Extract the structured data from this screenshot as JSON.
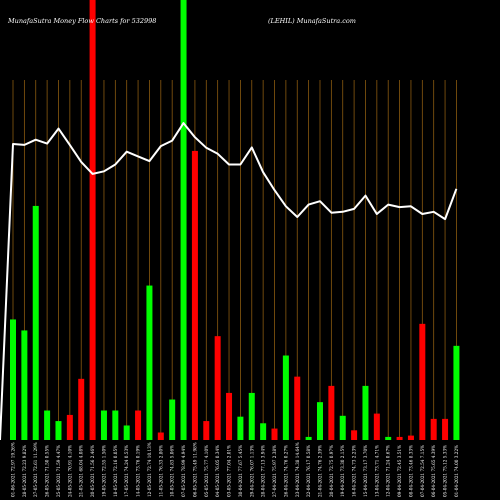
{
  "chart_data": {
    "type": "bar",
    "header_left": "MunafaSutra  Money Flow  Charts for 532998",
    "header_right": "(LEHIL) MunafaSutra.com",
    "ylim": [
      0,
      100
    ],
    "colors": {
      "up": "#00ff00",
      "down": "#ff0000",
      "line": "#ffffff",
      "grid": "#8a5a10",
      "background": "#000000"
    },
    "bars": [
      {
        "label": "01-06-2021 72.97 19.26%",
        "value": 27.4,
        "dir": "up"
      },
      {
        "label": "28-05-2021 72.23 9.82%",
        "value": 24.9,
        "dir": "up"
      },
      {
        "label": "27-05-2021 72.61 11.29%",
        "value": 53.2,
        "dir": "up"
      },
      {
        "label": "26-05-2021 71.50 0.55%",
        "value": 6.7,
        "dir": "up"
      },
      {
        "label": "25-05-2021 71.59 4.47%",
        "value": 4.3,
        "dir": "up"
      },
      {
        "label": "24-05-2021 70.91 4.10%",
        "value": 5.7,
        "dir": "down"
      },
      {
        "label": "21-05-2021 68.04 4.08%",
        "value": 13.9,
        "dir": "down"
      },
      {
        "label": "20-05-2021 71.56 2.46%",
        "value": 100,
        "dir": "down"
      },
      {
        "label": "19-05-2021 72.55 1.50%",
        "value": 6.7,
        "dir": "up"
      },
      {
        "label": "18-05-2021 72.16 0.05%",
        "value": 6.7,
        "dir": "up"
      },
      {
        "label": "17-05-2021 74.24 0.53%",
        "value": 3.3,
        "dir": "up"
      },
      {
        "label": "14-05-2021 73.76 0.19%",
        "value": 6.7,
        "dir": "down"
      },
      {
        "label": "12-05-2021 72.74 10.13%",
        "value": 35.1,
        "dir": "up"
      },
      {
        "label": "11-05-2021 76.33 2.80%",
        "value": 1.7,
        "dir": "down"
      },
      {
        "label": "10-05-2021 74.83 5.06%",
        "value": 9.2,
        "dir": "up"
      },
      {
        "label": "07-05-2021 78.99 4.94%",
        "value": 100,
        "dir": "up"
      },
      {
        "label": "06-05-2021 75.49 11.98%",
        "value": 65.7,
        "dir": "down"
      },
      {
        "label": "05-05-2021 75.77 4.10%",
        "value": 4.3,
        "dir": "down"
      },
      {
        "label": "04-05-2021 76.05 0.34%",
        "value": 23.6,
        "dir": "down"
      },
      {
        "label": "03-05-2021 77.04 2.01%",
        "value": 10.7,
        "dir": "down"
      },
      {
        "label": "30-04-2021 77.67 5.45%",
        "value": 5.3,
        "dir": "up"
      },
      {
        "label": "29-04-2021 76.07 1.13%",
        "value": 10.7,
        "dir": "up"
      },
      {
        "label": "28-04-2021 77.13 3.94%",
        "value": 3.8,
        "dir": "up"
      },
      {
        "label": "27-04-2021 75.97 2.38%",
        "value": 2.6,
        "dir": "down"
      },
      {
        "label": "26-04-2021 74.76 0.27%",
        "value": 19.2,
        "dir": "up"
      },
      {
        "label": "23-04-2021 74.38 14.64%",
        "value": 14.4,
        "dir": "down"
      },
      {
        "label": "22-04-2021 76.17 0.58%",
        "value": 0.7,
        "dir": "up"
      },
      {
        "label": "21-04-2021 74.76 2.39%",
        "value": 8.6,
        "dir": "up"
      },
      {
        "label": "20-04-2021 72.75 0.97%",
        "value": 12.3,
        "dir": "down"
      },
      {
        "label": "19-04-2021 73.30 2.15%",
        "value": 5.5,
        "dir": "up"
      },
      {
        "label": "16-04-2021 74.73 2.23%",
        "value": 2.2,
        "dir": "down"
      },
      {
        "label": "15-04-2021 73.17 3.70%",
        "value": 12.3,
        "dir": "up"
      },
      {
        "label": "13-04-2021 73.71 4.71%",
        "value": 6.0,
        "dir": "down"
      },
      {
        "label": "12-04-2021 71.24 0.67%",
        "value": 0.7,
        "dir": "up"
      },
      {
        "label": "09-04-2021 72.45 3.51%",
        "value": 0.7,
        "dir": "down"
      },
      {
        "label": "08-04-2021 73.46 8.33%",
        "value": 1.0,
        "dir": "down"
      },
      {
        "label": "07-04-2021 72.54 7.15%",
        "value": 26.4,
        "dir": "down"
      },
      {
        "label": "06-04-2021 75.65 4.39%",
        "value": 4.8,
        "dir": "down"
      },
      {
        "label": "05-04-2021 75.12 5.33%",
        "value": 4.8,
        "dir": "down"
      },
      {
        "label": "01-04-2021 74.00 3.22%",
        "value": 21.4,
        "dir": "up"
      }
    ],
    "line": [
      82.5,
      82.3,
      83.5,
      82.6,
      86.1,
      82.3,
      78.3,
      75.5,
      76.1,
      77.7,
      80.7,
      79.6,
      78.5,
      82.0,
      83.3,
      87.4,
      84.1,
      81.6,
      80.2,
      77.7,
      77.7,
      81.7,
      75.9,
      71.7,
      67.9,
      65.4,
      68.3,
      69.1,
      66.4,
      66.6,
      67.3,
      70.4,
      66.1,
      68.3,
      67.7,
      67.9,
      66.1,
      66.6,
      64.9,
      72.0
    ]
  }
}
